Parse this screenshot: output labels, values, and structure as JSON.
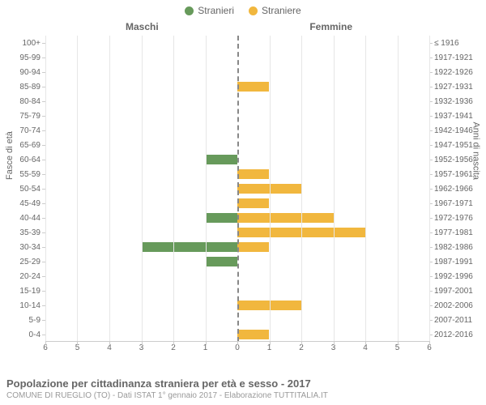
{
  "chart": {
    "type": "population-pyramid",
    "legend": {
      "male": {
        "label": "Stranieri",
        "color": "#679a5b"
      },
      "female": {
        "label": "Straniere",
        "color": "#f1b73e"
      }
    },
    "column_headers": {
      "left": "Maschi",
      "right": "Femmine"
    },
    "y_axis_titles": {
      "left": "Fasce di età",
      "right": "Anni di nascita"
    },
    "x_axis": {
      "min": 0,
      "max": 6,
      "step": 1
    },
    "background_color": "#ffffff",
    "grid_color": "#e6e6e6",
    "axis_color": "#cccccc",
    "center_line_color": "#888888",
    "label_fontsize": 10,
    "title_fontsize": 13,
    "rows": [
      {
        "age": "100+",
        "years": "≤ 1916",
        "male": 0,
        "female": 0
      },
      {
        "age": "95-99",
        "years": "1917-1921",
        "male": 0,
        "female": 0
      },
      {
        "age": "90-94",
        "years": "1922-1926",
        "male": 0,
        "female": 0
      },
      {
        "age": "85-89",
        "years": "1927-1931",
        "male": 0,
        "female": 1
      },
      {
        "age": "80-84",
        "years": "1932-1936",
        "male": 0,
        "female": 0
      },
      {
        "age": "75-79",
        "years": "1937-1941",
        "male": 0,
        "female": 0
      },
      {
        "age": "70-74",
        "years": "1942-1946",
        "male": 0,
        "female": 0
      },
      {
        "age": "65-69",
        "years": "1947-1951",
        "male": 0,
        "female": 0
      },
      {
        "age": "60-64",
        "years": "1952-1956",
        "male": 1,
        "female": 0
      },
      {
        "age": "55-59",
        "years": "1957-1961",
        "male": 0,
        "female": 1
      },
      {
        "age": "50-54",
        "years": "1962-1966",
        "male": 0,
        "female": 2
      },
      {
        "age": "45-49",
        "years": "1967-1971",
        "male": 0,
        "female": 1
      },
      {
        "age": "40-44",
        "years": "1972-1976",
        "male": 1,
        "female": 3
      },
      {
        "age": "35-39",
        "years": "1977-1981",
        "male": 0,
        "female": 4
      },
      {
        "age": "30-34",
        "years": "1982-1986",
        "male": 3,
        "female": 1
      },
      {
        "age": "25-29",
        "years": "1987-1991",
        "male": 1,
        "female": 0
      },
      {
        "age": "20-24",
        "years": "1992-1996",
        "male": 0,
        "female": 0
      },
      {
        "age": "15-19",
        "years": "1997-2001",
        "male": 0,
        "female": 0
      },
      {
        "age": "10-14",
        "years": "2002-2006",
        "male": 0,
        "female": 2
      },
      {
        "age": "5-9",
        "years": "2007-2011",
        "male": 0,
        "female": 0
      },
      {
        "age": "0-4",
        "years": "2012-2016",
        "male": 0,
        "female": 1
      }
    ]
  },
  "footer": {
    "title": "Popolazione per cittadinanza straniera per età e sesso - 2017",
    "subtitle": "COMUNE DI RUEGLIO (TO) - Dati ISTAT 1° gennaio 2017 - Elaborazione TUTTITALIA.IT"
  }
}
